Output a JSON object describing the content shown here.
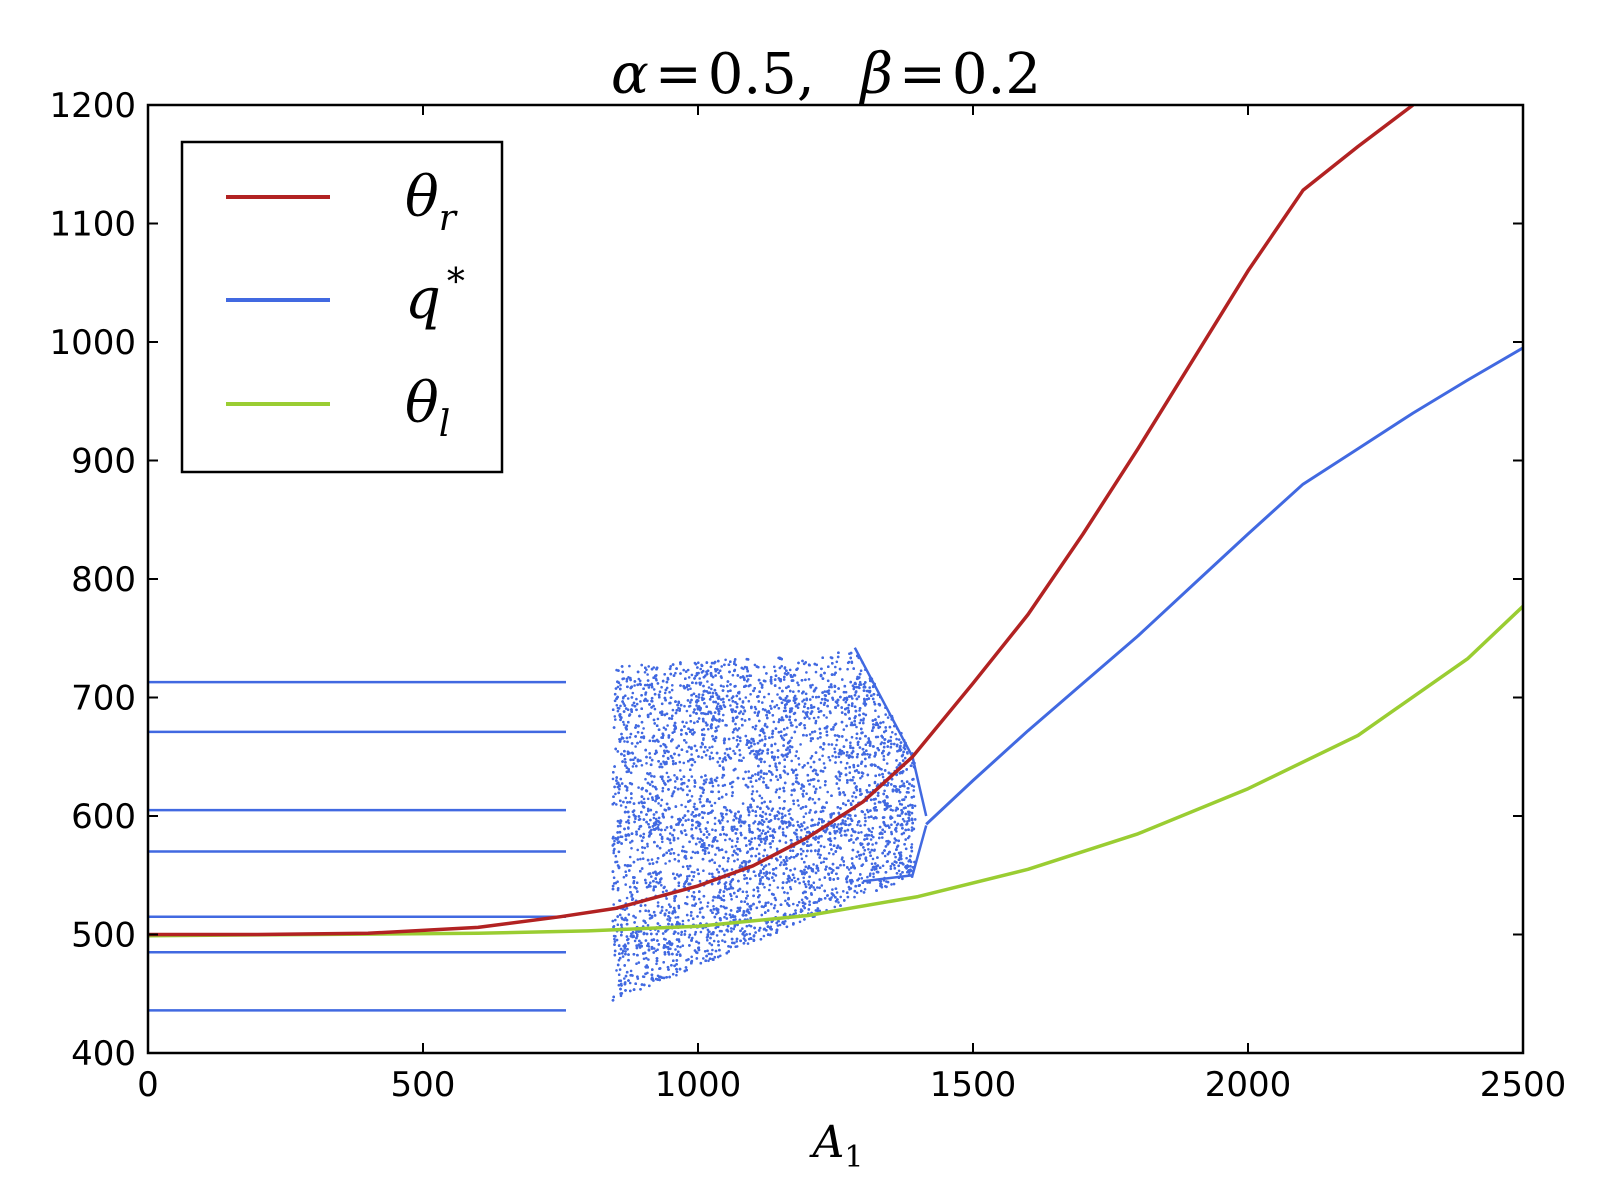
{
  "chart_data": {
    "type": "scatter",
    "title": {
      "alpha_symbol": "α",
      "alpha_value": "0.5",
      "beta_symbol": "β",
      "beta_value": "0.2",
      "equals": "=",
      "separator": ","
    },
    "xlabel": {
      "symbol": "A",
      "subscript": "1"
    },
    "ylabel": "",
    "xlim": [
      0,
      2500
    ],
    "ylim": [
      400,
      1200
    ],
    "xticks": [
      0,
      500,
      1000,
      1500,
      2000,
      2500
    ],
    "yticks": [
      400,
      500,
      600,
      700,
      800,
      900,
      1000,
      1100,
      1200
    ],
    "grid": false,
    "legend": {
      "placement": "top-left",
      "entries": [
        {
          "symbol": "θ",
          "sub": "r",
          "sup": "",
          "color": "#b22222"
        },
        {
          "symbol": "q",
          "sub": "",
          "sup": "*",
          "color": "#4169e1"
        },
        {
          "symbol": "θ",
          "sub": "l",
          "sup": "",
          "color": "#9acd32"
        }
      ]
    },
    "series": [
      {
        "name": "θr",
        "color": "#b22222",
        "x": [
          0,
          200,
          400,
          600,
          750,
          850,
          1000,
          1100,
          1200,
          1300,
          1390,
          1500,
          1600,
          1700,
          1800,
          1900,
          2000,
          2100,
          2200,
          2300
        ],
        "y": [
          500,
          500,
          501,
          506,
          515,
          522,
          541,
          558,
          582,
          612,
          650,
          712,
          770,
          838,
          910,
          985,
          1060,
          1128,
          1165,
          1200
        ]
      },
      {
        "name": "θl",
        "color": "#9acd32",
        "x": [
          0,
          300,
          600,
          800,
          1000,
          1200,
          1400,
          1600,
          1800,
          2000,
          2200,
          2400,
          2500
        ],
        "y": [
          499,
          500,
          501,
          503,
          507,
          516,
          532,
          555,
          585,
          623,
          668,
          733,
          777
        ]
      },
      {
        "name": "q*",
        "color": "#4169e1",
        "period7": {
          "x_end": 760,
          "levels": [
            436,
            485,
            515,
            570,
            605,
            671,
            713
          ]
        },
        "chaotic_band": {
          "x_start": 845,
          "x_end": 1395,
          "y_low_start": 443,
          "y_low_end": 550,
          "y_high_start": 726,
          "y_high_end": 742
        },
        "period2_branches": {
          "x_start": 1285,
          "x_end": 1415,
          "upper": [
            [
              1285,
              742
            ],
            [
              1390,
              650
            ],
            [
              1415,
              600
            ]
          ],
          "lower": [
            [
              1300,
              545
            ],
            [
              1390,
              550
            ],
            [
              1415,
              592
            ]
          ]
        },
        "stable_branch": {
          "x": [
            1415,
            1500,
            1600,
            1700,
            1800,
            1900,
            2000,
            2100,
            2200,
            2300,
            2400,
            2500
          ],
          "y": [
            593,
            630,
            672,
            712,
            752,
            795,
            838,
            880,
            910,
            940,
            968,
            995
          ]
        }
      }
    ]
  }
}
